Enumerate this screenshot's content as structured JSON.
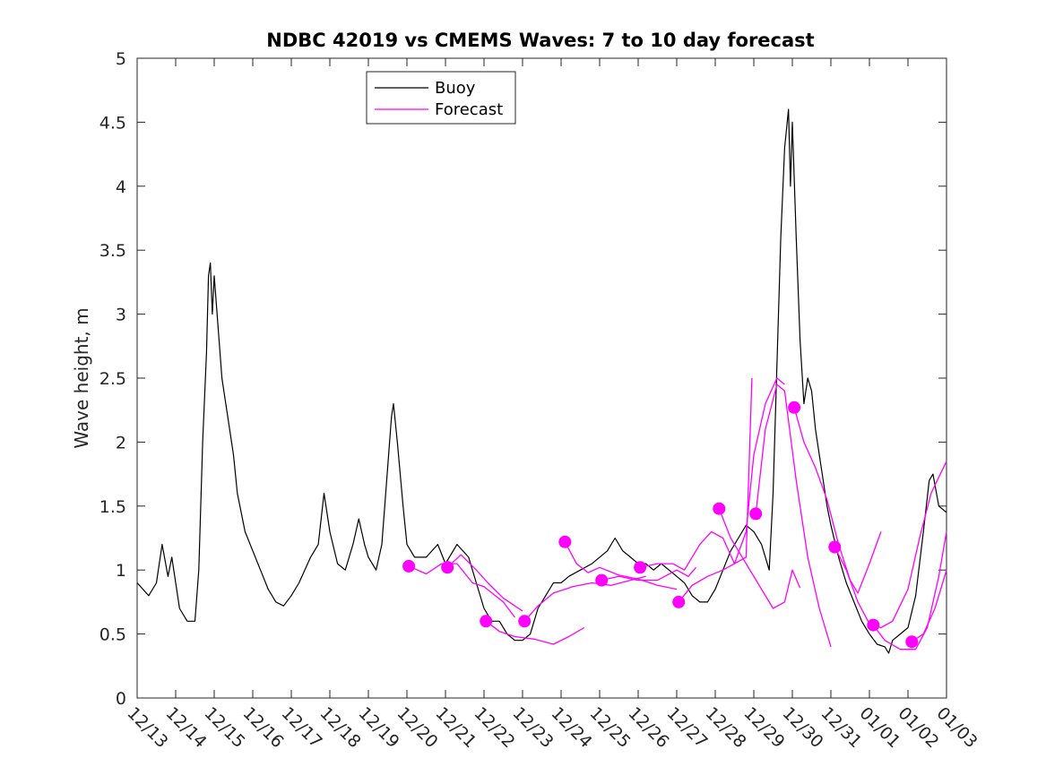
{
  "chart_data": {
    "type": "line",
    "title": "NDBC 42019 vs CMEMS Waves: 7 to 10 day forecast",
    "xlabel": "",
    "ylabel": "Wave height, m",
    "x_unit": "days since 12/13",
    "xlim": [
      0,
      21
    ],
    "ylim": [
      0,
      5
    ],
    "yticks": [
      0,
      0.5,
      1,
      1.5,
      2,
      2.5,
      3,
      3.5,
      4,
      4.5,
      5
    ],
    "ytick_labels": [
      "0",
      "0.5",
      "1",
      "1.5",
      "2",
      "2.5",
      "3",
      "3.5",
      "4",
      "4.5",
      "5"
    ],
    "xticks": [
      0,
      1,
      2,
      3,
      4,
      5,
      6,
      7,
      8,
      9,
      10,
      11,
      12,
      13,
      14,
      15,
      16,
      17,
      18,
      19,
      20,
      21
    ],
    "xtick_labels": [
      "12/13",
      "12/14",
      "12/15",
      "12/16",
      "12/17",
      "12/18",
      "12/19",
      "12/20",
      "12/21",
      "12/22",
      "12/23",
      "12/24",
      "12/25",
      "12/26",
      "12/27",
      "12/28",
      "12/29",
      "12/30",
      "12/31",
      "01/01",
      "01/02",
      "01/03"
    ],
    "legend": {
      "position": "top-left",
      "entries": [
        "Buoy",
        "Forecast"
      ]
    },
    "colors": {
      "buoy": "#000000",
      "forecast": "#ff00ff",
      "axis": "#262626"
    },
    "buoy": {
      "name": "Buoy",
      "points": [
        [
          0,
          0.9
        ],
        [
          0.3,
          0.8
        ],
        [
          0.5,
          0.9
        ],
        [
          0.65,
          1.2
        ],
        [
          0.8,
          0.95
        ],
        [
          0.9,
          1.1
        ],
        [
          1.1,
          0.7
        ],
        [
          1.3,
          0.6
        ],
        [
          1.5,
          0.6
        ],
        [
          1.6,
          1.0
        ],
        [
          1.7,
          2.0
        ],
        [
          1.8,
          2.7
        ],
        [
          1.85,
          3.3
        ],
        [
          1.9,
          3.4
        ],
        [
          1.95,
          3.0
        ],
        [
          2.0,
          3.3
        ],
        [
          2.1,
          2.9
        ],
        [
          2.2,
          2.5
        ],
        [
          2.3,
          2.3
        ],
        [
          2.4,
          2.1
        ],
        [
          2.5,
          1.9
        ],
        [
          2.6,
          1.6
        ],
        [
          2.8,
          1.3
        ],
        [
          3.0,
          1.15
        ],
        [
          3.2,
          1.0
        ],
        [
          3.4,
          0.85
        ],
        [
          3.6,
          0.75
        ],
        [
          3.8,
          0.72
        ],
        [
          4.0,
          0.8
        ],
        [
          4.2,
          0.9
        ],
        [
          4.5,
          1.1
        ],
        [
          4.7,
          1.2
        ],
        [
          4.85,
          1.6
        ],
        [
          5.0,
          1.3
        ],
        [
          5.2,
          1.05
        ],
        [
          5.4,
          1.0
        ],
        [
          5.6,
          1.2
        ],
        [
          5.75,
          1.4
        ],
        [
          5.9,
          1.2
        ],
        [
          6.0,
          1.1
        ],
        [
          6.2,
          1.0
        ],
        [
          6.35,
          1.2
        ],
        [
          6.5,
          1.8
        ],
        [
          6.6,
          2.2
        ],
        [
          6.65,
          2.3
        ],
        [
          6.75,
          2.0
        ],
        [
          6.9,
          1.5
        ],
        [
          7.0,
          1.2
        ],
        [
          7.2,
          1.1
        ],
        [
          7.5,
          1.1
        ],
        [
          7.8,
          1.2
        ],
        [
          8.0,
          1.05
        ],
        [
          8.3,
          1.2
        ],
        [
          8.6,
          1.1
        ],
        [
          8.8,
          0.9
        ],
        [
          9.0,
          0.7
        ],
        [
          9.2,
          0.6
        ],
        [
          9.4,
          0.6
        ],
        [
          9.6,
          0.5
        ],
        [
          9.8,
          0.45
        ],
        [
          10.0,
          0.45
        ],
        [
          10.2,
          0.5
        ],
        [
          10.4,
          0.7
        ],
        [
          10.6,
          0.8
        ],
        [
          10.8,
          0.9
        ],
        [
          11.0,
          0.9
        ],
        [
          11.2,
          0.95
        ],
        [
          11.5,
          1.0
        ],
        [
          11.8,
          1.05
        ],
        [
          12.0,
          1.1
        ],
        [
          12.2,
          1.15
        ],
        [
          12.4,
          1.25
        ],
        [
          12.6,
          1.15
        ],
        [
          12.8,
          1.1
        ],
        [
          13.0,
          1.05
        ],
        [
          13.2,
          1.05
        ],
        [
          13.4,
          1.0
        ],
        [
          13.6,
          1.05
        ],
        [
          13.8,
          1.0
        ],
        [
          14.0,
          0.95
        ],
        [
          14.2,
          0.9
        ],
        [
          14.4,
          0.8
        ],
        [
          14.6,
          0.75
        ],
        [
          14.8,
          0.75
        ],
        [
          15.0,
          0.85
        ],
        [
          15.2,
          1.0
        ],
        [
          15.4,
          1.15
        ],
        [
          15.6,
          1.25
        ],
        [
          15.8,
          1.35
        ],
        [
          16.0,
          1.3
        ],
        [
          16.2,
          1.2
        ],
        [
          16.4,
          1.0
        ],
        [
          16.5,
          1.6
        ],
        [
          16.6,
          2.6
        ],
        [
          16.7,
          3.6
        ],
        [
          16.8,
          4.3
        ],
        [
          16.9,
          4.6
        ],
        [
          16.95,
          4.0
        ],
        [
          17.0,
          4.5
        ],
        [
          17.1,
          3.6
        ],
        [
          17.2,
          2.8
        ],
        [
          17.3,
          2.3
        ],
        [
          17.4,
          2.5
        ],
        [
          17.5,
          2.4
        ],
        [
          17.6,
          2.1
        ],
        [
          17.7,
          1.9
        ],
        [
          17.8,
          1.7
        ],
        [
          17.9,
          1.5
        ],
        [
          18.0,
          1.35
        ],
        [
          18.2,
          1.1
        ],
        [
          18.4,
          0.9
        ],
        [
          18.6,
          0.75
        ],
        [
          18.8,
          0.6
        ],
        [
          19.0,
          0.5
        ],
        [
          19.2,
          0.42
        ],
        [
          19.4,
          0.4
        ],
        [
          19.5,
          0.35
        ],
        [
          19.6,
          0.45
        ],
        [
          19.8,
          0.5
        ],
        [
          20.0,
          0.55
        ],
        [
          20.2,
          0.8
        ],
        [
          20.4,
          1.3
        ],
        [
          20.55,
          1.7
        ],
        [
          20.65,
          1.75
        ],
        [
          20.8,
          1.5
        ],
        [
          21.0,
          1.45
        ]
      ]
    },
    "forecasts": [
      {
        "name": "Forecast",
        "start": [
          7.05,
          1.03
        ],
        "points": [
          [
            7.05,
            1.03
          ],
          [
            7.5,
            0.97
          ],
          [
            7.9,
            1.05
          ],
          [
            8.3,
            1.05
          ],
          [
            8.7,
            0.9
          ],
          [
            9.0,
            0.87
          ],
          [
            9.5,
            0.75
          ],
          [
            9.8,
            0.63
          ]
        ]
      },
      {
        "name": "Forecast",
        "start": [
          8.05,
          1.02
        ],
        "points": [
          [
            8.05,
            1.02
          ],
          [
            8.4,
            1.12
          ],
          [
            8.8,
            1.0
          ],
          [
            9.1,
            0.9
          ],
          [
            9.5,
            0.78
          ],
          [
            10.0,
            0.68
          ]
        ]
      },
      {
        "name": "Forecast",
        "start": [
          9.05,
          0.6
        ],
        "points": [
          [
            9.05,
            0.6
          ],
          [
            9.4,
            0.52
          ],
          [
            9.8,
            0.48
          ],
          [
            10.3,
            0.46
          ],
          [
            10.8,
            0.42
          ],
          [
            11.2,
            0.48
          ],
          [
            11.6,
            0.55
          ]
        ]
      },
      {
        "name": "Forecast",
        "start": [
          10.05,
          0.6
        ],
        "points": [
          [
            10.05,
            0.6
          ],
          [
            10.4,
            0.72
          ],
          [
            10.8,
            0.82
          ],
          [
            11.3,
            0.87
          ],
          [
            11.8,
            0.9
          ],
          [
            12.3,
            0.88
          ],
          [
            12.8,
            0.92
          ],
          [
            13.2,
            0.95
          ]
        ]
      },
      {
        "name": "Forecast",
        "start": [
          11.1,
          1.22
        ],
        "points": [
          [
            11.1,
            1.22
          ],
          [
            11.4,
            1.05
          ],
          [
            11.7,
            0.98
          ],
          [
            12.0,
            1.02
          ],
          [
            12.5,
            0.96
          ],
          [
            13.0,
            0.93
          ],
          [
            13.5,
            0.88
          ],
          [
            14.0,
            0.85
          ]
        ]
      },
      {
        "name": "Forecast",
        "start": [
          12.05,
          0.92
        ],
        "points": [
          [
            12.05,
            0.92
          ],
          [
            12.5,
            0.95
          ],
          [
            13.0,
            0.92
          ],
          [
            13.5,
            0.92
          ],
          [
            14.0,
            1.0
          ],
          [
            14.3,
            0.95
          ],
          [
            14.5,
            1.02
          ]
        ]
      },
      {
        "name": "Forecast",
        "start": [
          13.05,
          1.02
        ],
        "points": [
          [
            13.05,
            1.02
          ],
          [
            13.5,
            1.05
          ],
          [
            13.9,
            1.05
          ],
          [
            14.2,
            1.0
          ],
          [
            14.6,
            1.2
          ],
          [
            14.9,
            1.3
          ],
          [
            15.2,
            1.25
          ],
          [
            15.5,
            1.05
          ],
          [
            15.8,
            1.1
          ],
          [
            15.95,
            2.5
          ]
        ]
      },
      {
        "name": "Forecast",
        "start": [
          14.05,
          0.75
        ],
        "points": [
          [
            14.05,
            0.75
          ],
          [
            14.4,
            0.88
          ],
          [
            14.8,
            0.95
          ],
          [
            15.2,
            1.0
          ],
          [
            15.5,
            1.05
          ],
          [
            15.8,
            1.3
          ],
          [
            16.0,
            1.9
          ],
          [
            16.3,
            2.3
          ],
          [
            16.6,
            2.5
          ],
          [
            16.8,
            2.45
          ]
        ]
      },
      {
        "name": "Forecast",
        "start": [
          15.1,
          1.48
        ],
        "points": [
          [
            15.1,
            1.48
          ],
          [
            15.4,
            1.25
          ],
          [
            15.8,
            1.05
          ],
          [
            16.2,
            0.85
          ],
          [
            16.5,
            0.7
          ],
          [
            16.8,
            0.75
          ],
          [
            17.0,
            1.0
          ],
          [
            17.2,
            0.86
          ]
        ]
      },
      {
        "name": "Forecast",
        "start": [
          16.05,
          1.44
        ],
        "points": [
          [
            16.05,
            1.44
          ],
          [
            16.3,
            2.1
          ],
          [
            16.6,
            2.45
          ],
          [
            16.8,
            2.4
          ],
          [
            17.1,
            1.7
          ],
          [
            17.4,
            1.1
          ],
          [
            17.7,
            0.7
          ],
          [
            18.0,
            0.4
          ]
        ]
      },
      {
        "name": "Forecast",
        "start": [
          17.05,
          2.27
        ],
        "points": [
          [
            17.05,
            2.27
          ],
          [
            17.3,
            2.0
          ],
          [
            17.6,
            1.8
          ],
          [
            17.9,
            1.55
          ],
          [
            18.2,
            1.2
          ],
          [
            18.5,
            0.92
          ],
          [
            18.7,
            0.82
          ],
          [
            19.0,
            1.05
          ],
          [
            19.3,
            1.3
          ]
        ]
      },
      {
        "name": "Forecast",
        "start": [
          18.1,
          1.18
        ],
        "points": [
          [
            18.1,
            1.18
          ],
          [
            18.4,
            1.0
          ],
          [
            18.7,
            0.75
          ],
          [
            19.0,
            0.58
          ],
          [
            19.3,
            0.55
          ],
          [
            19.6,
            0.6
          ],
          [
            20.0,
            0.85
          ],
          [
            20.3,
            1.25
          ],
          [
            20.6,
            1.6
          ],
          [
            21.0,
            1.85
          ]
        ]
      },
      {
        "name": "Forecast",
        "start": [
          19.1,
          0.57
        ],
        "points": [
          [
            19.1,
            0.57
          ],
          [
            19.4,
            0.45
          ],
          [
            19.8,
            0.38
          ],
          [
            20.2,
            0.38
          ],
          [
            20.5,
            0.55
          ],
          [
            20.8,
            0.95
          ],
          [
            21.0,
            1.3
          ]
        ]
      },
      {
        "name": "Forecast",
        "start": [
          20.1,
          0.44
        ],
        "points": [
          [
            20.1,
            0.44
          ],
          [
            20.4,
            0.5
          ],
          [
            20.7,
            0.7
          ],
          [
            20.9,
            0.9
          ],
          [
            21.0,
            1.0
          ]
        ]
      }
    ]
  }
}
